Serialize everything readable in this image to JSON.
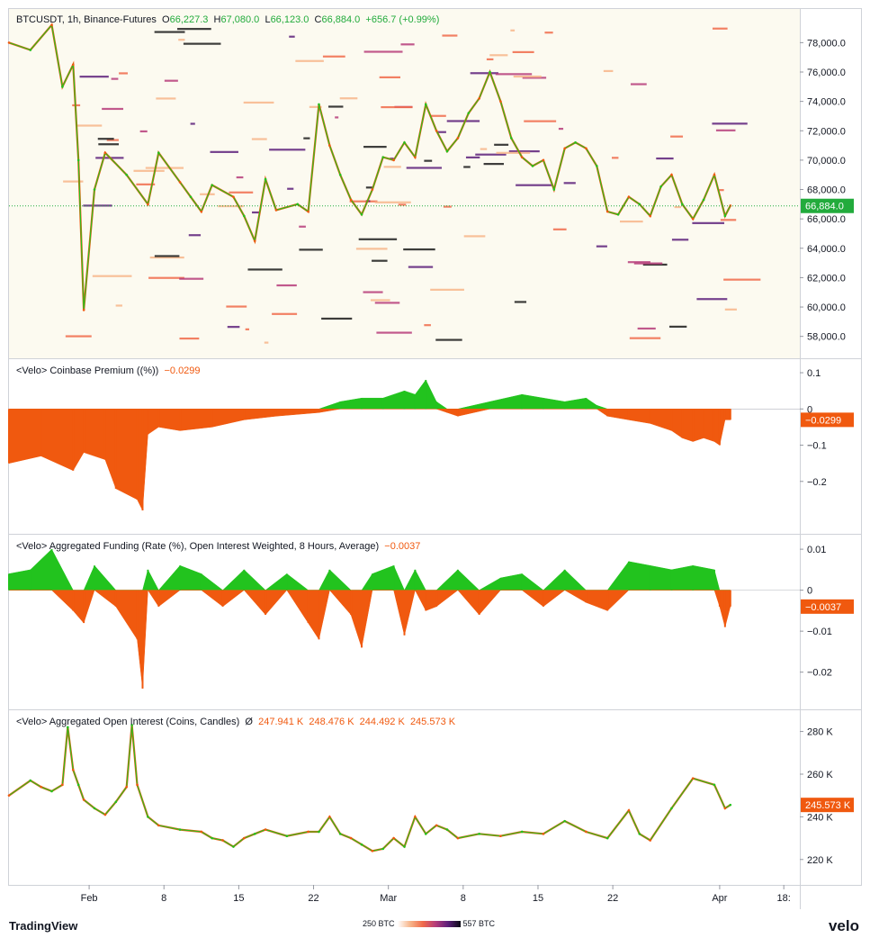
{
  "header": {
    "symbol": "BTCUSDT, 1h, Binance-Futures",
    "open_label": "O",
    "open": "66,227.3",
    "high_label": "H",
    "high": "67,080.0",
    "low_label": "L",
    "low": "66,123.0",
    "close_label": "C",
    "close": "66,884.0",
    "change": "+656.7 (+0.99%)"
  },
  "panes": {
    "premium": {
      "title": "<Velo> Coinbase Premium ((%))",
      "value": "−0.0299"
    },
    "funding": {
      "title": "<Velo> Aggregated Funding (Rate (%), Open Interest Weighted, 8 Hours, Average)",
      "value": "−0.0037"
    },
    "oi": {
      "title": "<Velo> Aggregated Open Interest (Coins, Candles)",
      "symbol": "Ø",
      "o": "247.941 K",
      "h": "248.476 K",
      "l": "244.492 K",
      "c": "245.573 K"
    }
  },
  "footer": {
    "brand": "TradingView",
    "velo": "velo",
    "legend_min": "250 BTC",
    "legend_max": "557 BTC"
  },
  "colors": {
    "up": "#22c31e",
    "down": "#f0590f",
    "price_bg": "#fcfaf0",
    "grid": "#e6e6e6"
  },
  "chart_data": [
    {
      "type": "line",
      "name": "price",
      "title": "BTCUSDT, 1h, Binance-Futures",
      "yticks": [
        "58,000.0",
        "60,000.0",
        "62,000.0",
        "64,000.0",
        "66,000.0",
        "68,000.0",
        "70,000.0",
        "72,000.0",
        "74,000.0",
        "76,000.0",
        "78,000.0"
      ],
      "ylim": [
        57000,
        79800
      ],
      "last_label": "66,884.0",
      "last_value": 66884,
      "x": [
        0,
        2,
        4,
        5,
        6,
        6.5,
        7,
        8,
        9,
        11,
        13,
        14,
        16,
        17,
        18,
        19,
        21,
        22,
        23,
        24,
        25,
        27,
        28,
        29,
        30,
        31,
        32,
        33,
        34,
        35,
        36,
        37,
        38,
        39,
        40,
        41,
        42,
        43,
        44,
        45,
        46,
        47,
        48,
        49,
        50,
        51,
        52,
        53,
        54,
        55,
        56,
        57,
        58,
        59,
        60,
        61,
        62,
        63,
        64,
        65,
        66,
        67,
        67.5
      ],
      "values": [
        78000,
        77500,
        79200,
        75000,
        76500,
        70000,
        59800,
        68000,
        70500,
        69000,
        67000,
        70500,
        68500,
        67500,
        66500,
        68300,
        67500,
        66200,
        64500,
        68700,
        66600,
        67000,
        66500,
        73800,
        71000,
        69000,
        67300,
        66300,
        68000,
        70200,
        70000,
        71200,
        70200,
        73800,
        72000,
        70600,
        71500,
        73200,
        74200,
        76000,
        74000,
        71500,
        70200,
        69600,
        70000,
        68000,
        70800,
        71200,
        70800,
        69600,
        66500,
        66300,
        67500,
        67000,
        66200,
        68200,
        69000,
        67000,
        66000,
        67300,
        69000,
        66200,
        66900
      ],
      "xticks": [
        [
          "Feb",
          7.5
        ],
        [
          "8",
          14.5
        ],
        [
          "15",
          21.5
        ],
        [
          "22",
          28.5
        ],
        [
          "Mar",
          35.5
        ],
        [
          "8",
          42.5
        ],
        [
          "15",
          49.5
        ],
        [
          "22",
          56.5
        ],
        [
          "Apr",
          66.5
        ],
        [
          "18:",
          72.5
        ]
      ]
    },
    {
      "type": "bar",
      "name": "premium",
      "title": "<Velo> Coinbase Premium ((%))",
      "yticks": [
        "0.1",
        "0",
        "−0.1",
        "−0.2"
      ],
      "ylim": [
        -0.29,
        0.12
      ],
      "last_label": "−0.0299",
      "x": [
        0,
        3,
        6,
        7,
        9,
        10,
        12,
        12.5,
        13,
        14,
        16,
        19,
        22,
        25,
        29,
        31,
        33,
        35,
        37,
        38,
        39,
        40,
        41,
        42,
        45,
        48,
        50,
        52,
        54,
        55,
        56,
        58,
        60,
        62,
        63,
        64,
        65,
        66,
        66.5,
        67,
        67.5
      ],
      "values": [
        -0.15,
        -0.13,
        -0.17,
        -0.12,
        -0.14,
        -0.22,
        -0.25,
        -0.28,
        -0.07,
        -0.05,
        -0.06,
        -0.05,
        -0.03,
        -0.02,
        -0.01,
        0.02,
        0.03,
        0.03,
        0.05,
        0.04,
        0.08,
        0.02,
        -0.01,
        -0.02,
        0.02,
        0.04,
        0.03,
        0.02,
        0.03,
        0.01,
        -0.02,
        -0.03,
        -0.04,
        -0.06,
        -0.08,
        -0.09,
        -0.08,
        -0.09,
        -0.1,
        -0.03,
        -0.03
      ]
    },
    {
      "type": "bar",
      "name": "funding",
      "title": "<Velo> Aggregated Funding (Rate (%), Open Interest Weighted, 8 Hours, Average)",
      "yticks": [
        "0.01",
        "0",
        "−0.01",
        "−0.02"
      ],
      "ylim": [
        -0.026,
        0.012
      ],
      "last_label": "−0.0037",
      "x": [
        0,
        2,
        4,
        6,
        7,
        8,
        10,
        12,
        12.5,
        13,
        14,
        16,
        18,
        20,
        22,
        24,
        26,
        28,
        29,
        30,
        32,
        33,
        34,
        36,
        37,
        38,
        39,
        40,
        42,
        44,
        46,
        48,
        50,
        52,
        54,
        56,
        58,
        60,
        62,
        64,
        66,
        66.5,
        67,
        67.5
      ],
      "values": [
        0.004,
        0.005,
        0.01,
        -0.005,
        -0.008,
        0.006,
        -0.004,
        -0.012,
        -0.024,
        0.005,
        -0.004,
        0.006,
        0.004,
        -0.004,
        0.005,
        -0.006,
        0.004,
        -0.008,
        -0.012,
        0.005,
        -0.006,
        -0.014,
        0.004,
        0.006,
        -0.011,
        0.005,
        -0.005,
        -0.004,
        0.005,
        -0.006,
        0.003,
        0.004,
        -0.004,
        0.005,
        -0.003,
        -0.005,
        0.007,
        0.006,
        0.005,
        0.006,
        0.005,
        -0.004,
        -0.009,
        -0.004
      ]
    },
    {
      "type": "line",
      "name": "open_interest",
      "title": "<Velo> Aggregated Open Interest (Coins, Candles)",
      "yticks": [
        "220 K",
        "240 K",
        "260 K",
        "280 K"
      ],
      "ylim": [
        214000,
        287000
      ],
      "last_label": "245.573 K",
      "x": [
        0,
        2,
        3,
        4,
        5,
        5.5,
        6,
        6.5,
        7,
        8,
        9,
        10,
        11,
        11.5,
        12,
        13,
        14,
        16,
        18,
        19,
        20,
        21,
        22,
        23,
        24,
        26,
        28,
        29,
        30,
        31,
        32,
        33,
        34,
        35,
        36,
        37,
        38,
        39,
        40,
        41,
        42,
        44,
        46,
        48,
        50,
        52,
        54,
        56,
        58,
        59,
        60,
        62,
        64,
        66,
        67,
        67.5
      ],
      "values": [
        250000,
        257000,
        254000,
        252000,
        255000,
        282000,
        262000,
        255000,
        248000,
        244000,
        241000,
        247000,
        254000,
        283000,
        255000,
        240000,
        236000,
        234000,
        233000,
        230000,
        229000,
        226000,
        230000,
        232000,
        234000,
        231000,
        233000,
        233000,
        240000,
        232000,
        230000,
        227000,
        224000,
        225000,
        230000,
        226000,
        240000,
        232000,
        236000,
        234000,
        230000,
        232000,
        231000,
        233000,
        232000,
        238000,
        233000,
        230000,
        243000,
        232000,
        229000,
        244000,
        258000,
        255000,
        244000,
        245573
      ]
    }
  ]
}
